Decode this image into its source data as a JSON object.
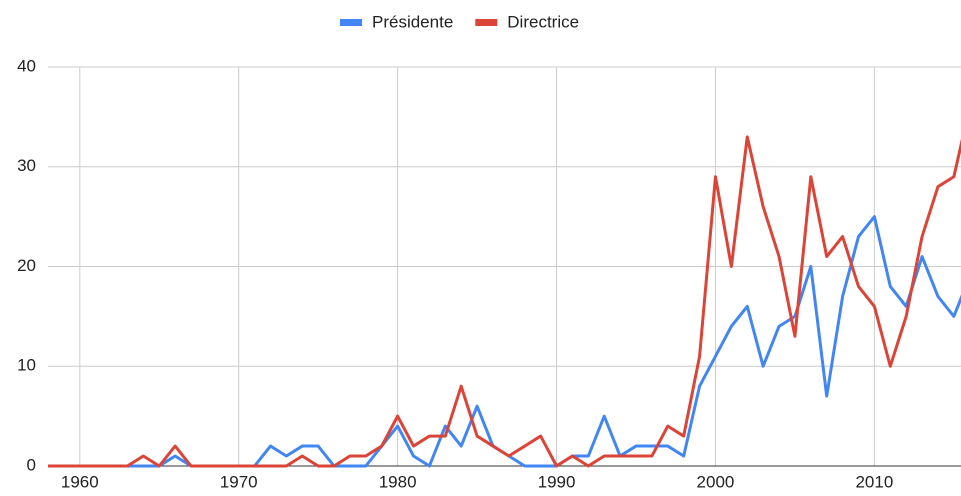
{
  "chart_data": {
    "type": "line",
    "x": [
      1958,
      1959,
      1960,
      1961,
      1962,
      1963,
      1964,
      1965,
      1966,
      1967,
      1968,
      1969,
      1970,
      1971,
      1972,
      1973,
      1974,
      1975,
      1976,
      1977,
      1978,
      1979,
      1980,
      1981,
      1982,
      1983,
      1984,
      1985,
      1986,
      1987,
      1988,
      1989,
      1990,
      1991,
      1992,
      1993,
      1994,
      1995,
      1996,
      1997,
      1998,
      1999,
      2000,
      2001,
      2002,
      2003,
      2004,
      2005,
      2006,
      2007,
      2008,
      2009,
      2010,
      2011,
      2012,
      2013,
      2014,
      2015,
      2016
    ],
    "series": [
      {
        "name": "Présidente",
        "color": "#4285f4",
        "values": [
          0,
          0,
          0,
          0,
          0,
          0,
          0,
          0,
          1,
          0,
          0,
          0,
          0,
          0,
          2,
          1,
          2,
          2,
          0,
          0,
          0,
          2,
          4,
          1,
          0,
          4,
          2,
          6,
          2,
          1,
          0,
          0,
          0,
          1,
          1,
          5,
          1,
          2,
          2,
          2,
          1,
          8,
          11,
          14,
          16,
          10,
          14,
          15,
          20,
          7,
          17,
          23,
          25,
          18,
          16,
          21,
          17,
          15,
          19
        ]
      },
      {
        "name": "Directrice",
        "color": "#db4437",
        "values": [
          0,
          0,
          0,
          0,
          0,
          0,
          1,
          0,
          2,
          0,
          0,
          0,
          0,
          0,
          0,
          0,
          1,
          0,
          0,
          1,
          1,
          2,
          5,
          2,
          3,
          3,
          8,
          3,
          2,
          1,
          2,
          3,
          0,
          1,
          0,
          1,
          1,
          1,
          1,
          4,
          3,
          11,
          29,
          20,
          33,
          26,
          21,
          13,
          29,
          21,
          23,
          18,
          16,
          10,
          15,
          23,
          28,
          29,
          36
        ]
      }
    ],
    "xlim": [
      1958,
      2015.45
    ],
    "xticks": [
      1960,
      1970,
      1980,
      1990,
      2000,
      2010
    ],
    "ylim": [
      0,
      40
    ],
    "yticks": [
      0,
      10,
      20,
      30,
      40
    ],
    "grid": true,
    "legend": "top"
  }
}
